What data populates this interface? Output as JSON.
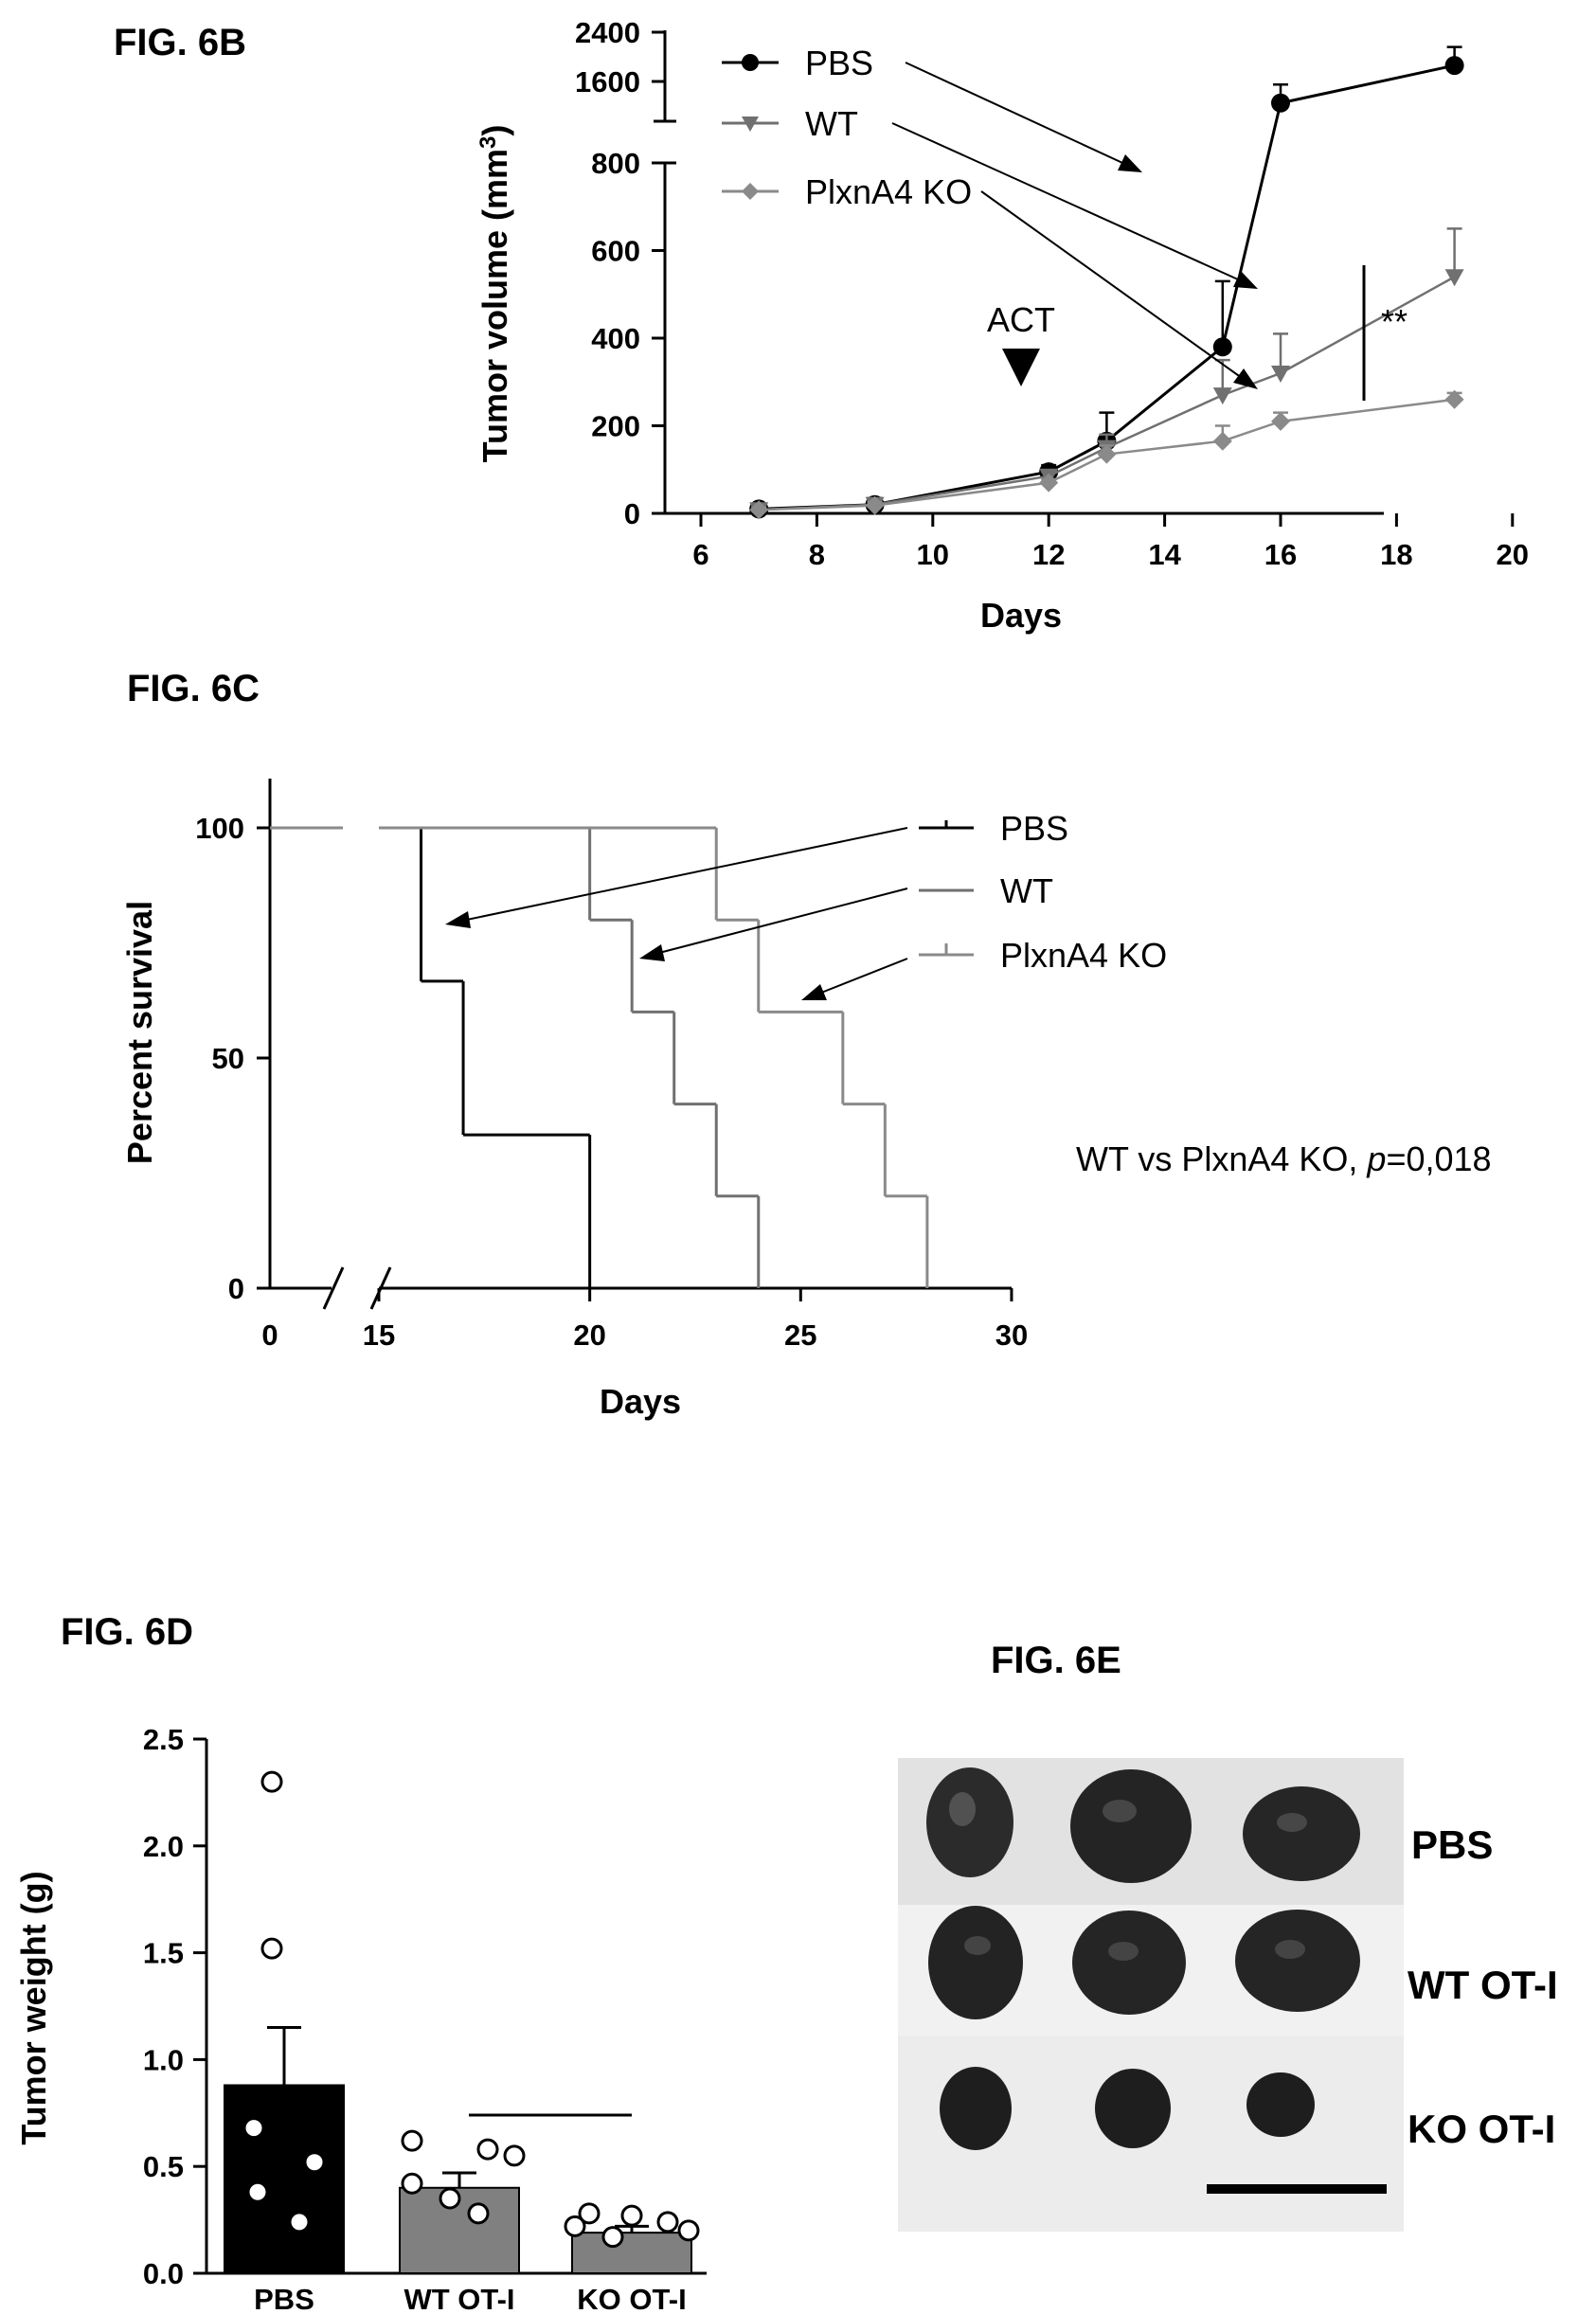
{
  "colors": {
    "pbs": "#000000",
    "wt": "#707070",
    "ko": "#8a8a8a",
    "bar_pbs": "#000000",
    "bar_wt": "#808080",
    "bar_ko": "#808080"
  },
  "fig6b": {
    "label": "FIG. 6B",
    "xlabel": "Days",
    "ylabel": "Tumor volume (mm",
    "ylabel_sup": "3",
    "ylabel_close": ")",
    "annotation": "ACT",
    "significance": "**",
    "legend": [
      "PBS",
      "WT",
      "PlxnA4 KO"
    ],
    "xticks": [
      "6",
      "8",
      "10",
      "12",
      "14",
      "16",
      "18",
      "20"
    ],
    "yticks": [
      "0",
      "200",
      "400",
      "600",
      "800"
    ],
    "yticks_upper": [
      "1600",
      "2400"
    ]
  },
  "fig6c": {
    "label": "FIG. 6C",
    "xlabel": "Days",
    "ylabel": "Percent survival",
    "legend": [
      "PBS",
      "WT",
      "PlxnA4 KO"
    ],
    "stat_text": "WT vs PlxnA4 KO, ",
    "stat_p": "p",
    "stat_value": "=0,018",
    "xticks": [
      "0",
      "15",
      "20",
      "25",
      "30"
    ],
    "yticks": [
      "0",
      "50",
      "100"
    ]
  },
  "fig6d": {
    "label": "FIG. 6D",
    "ylabel": "Tumor weight (g)",
    "yticks": [
      "0.0",
      "0.5",
      "1.0",
      "1.5",
      "2.0",
      "2.5"
    ],
    "categories": [
      "PBS",
      "WT OT-I",
      "KO OT-I"
    ]
  },
  "fig6e": {
    "label": "FIG. 6E",
    "rows": [
      "PBS",
      "WT OT-I",
      "KO OT-I"
    ]
  },
  "chart_data": [
    {
      "id": "6B",
      "type": "line",
      "title": "",
      "xlabel": "Days",
      "ylabel": "Tumor volume (mm3)",
      "xlim": [
        6,
        20
      ],
      "ylim": [
        0,
        2400
      ],
      "y_axis_break": [
        800,
        1200
      ],
      "series": [
        {
          "name": "PBS",
          "marker": "circle",
          "x": [
            7,
            9,
            12,
            13,
            15,
            16,
            19
          ],
          "y": [
            10,
            20,
            95,
            165,
            380,
            1250,
            1860
          ],
          "err": [
            10,
            15,
            15,
            65,
            150,
            300,
            300
          ]
        },
        {
          "name": "WT",
          "marker": "triangle-down",
          "x": [
            7,
            9,
            12,
            13,
            15,
            16,
            19
          ],
          "y": [
            8,
            20,
            85,
            150,
            270,
            320,
            540
          ],
          "err": [
            8,
            10,
            10,
            30,
            80,
            90,
            110
          ]
        },
        {
          "name": "PlxnA4 KO",
          "marker": "diamond",
          "x": [
            7,
            9,
            12,
            13,
            15,
            16,
            19
          ],
          "y": [
            8,
            18,
            70,
            135,
            165,
            210,
            260
          ],
          "err": [
            5,
            8,
            8,
            20,
            35,
            20,
            15
          ]
        }
      ]
    },
    {
      "id": "6C",
      "type": "line",
      "title": "",
      "xlabel": "Days",
      "ylabel": "Percent survival",
      "xlim": [
        0,
        30
      ],
      "x_axis_break": [
        0,
        15
      ],
      "ylim": [
        0,
        100
      ],
      "series": [
        {
          "name": "PBS",
          "x": [
            0,
            16,
            16,
            17,
            17,
            20,
            20
          ],
          "y": [
            100,
            100,
            66.7,
            66.7,
            33.3,
            33.3,
            0
          ]
        },
        {
          "name": "WT",
          "x": [
            0,
            20,
            20,
            21,
            21,
            22,
            22,
            23,
            23,
            24,
            24
          ],
          "y": [
            100,
            100,
            80,
            80,
            60,
            60,
            40,
            40,
            20,
            20,
            0
          ]
        },
        {
          "name": "PlxnA4 KO",
          "x": [
            0,
            23,
            23,
            24,
            24,
            26,
            26,
            27,
            27,
            28,
            28
          ],
          "y": [
            100,
            100,
            80,
            80,
            60,
            60,
            40,
            40,
            20,
            20,
            0
          ]
        }
      ]
    },
    {
      "id": "6D",
      "type": "bar",
      "title": "",
      "xlabel": "",
      "ylabel": "Tumor weight (g)",
      "ylim": [
        0,
        2.5
      ],
      "categories": [
        "PBS",
        "WT OT-I",
        "KO OT-I"
      ],
      "values": [
        0.88,
        0.4,
        0.19
      ],
      "err": [
        0.27,
        0.07,
        0.03
      ],
      "points": [
        [
          2.3,
          1.52,
          0.68,
          0.52,
          0.38,
          0.24
        ],
        [
          0.62,
          0.58,
          0.55,
          0.42,
          0.35,
          0.28
        ],
        [
          0.28,
          0.27,
          0.24,
          0.22,
          0.2,
          0.17
        ]
      ]
    }
  ]
}
